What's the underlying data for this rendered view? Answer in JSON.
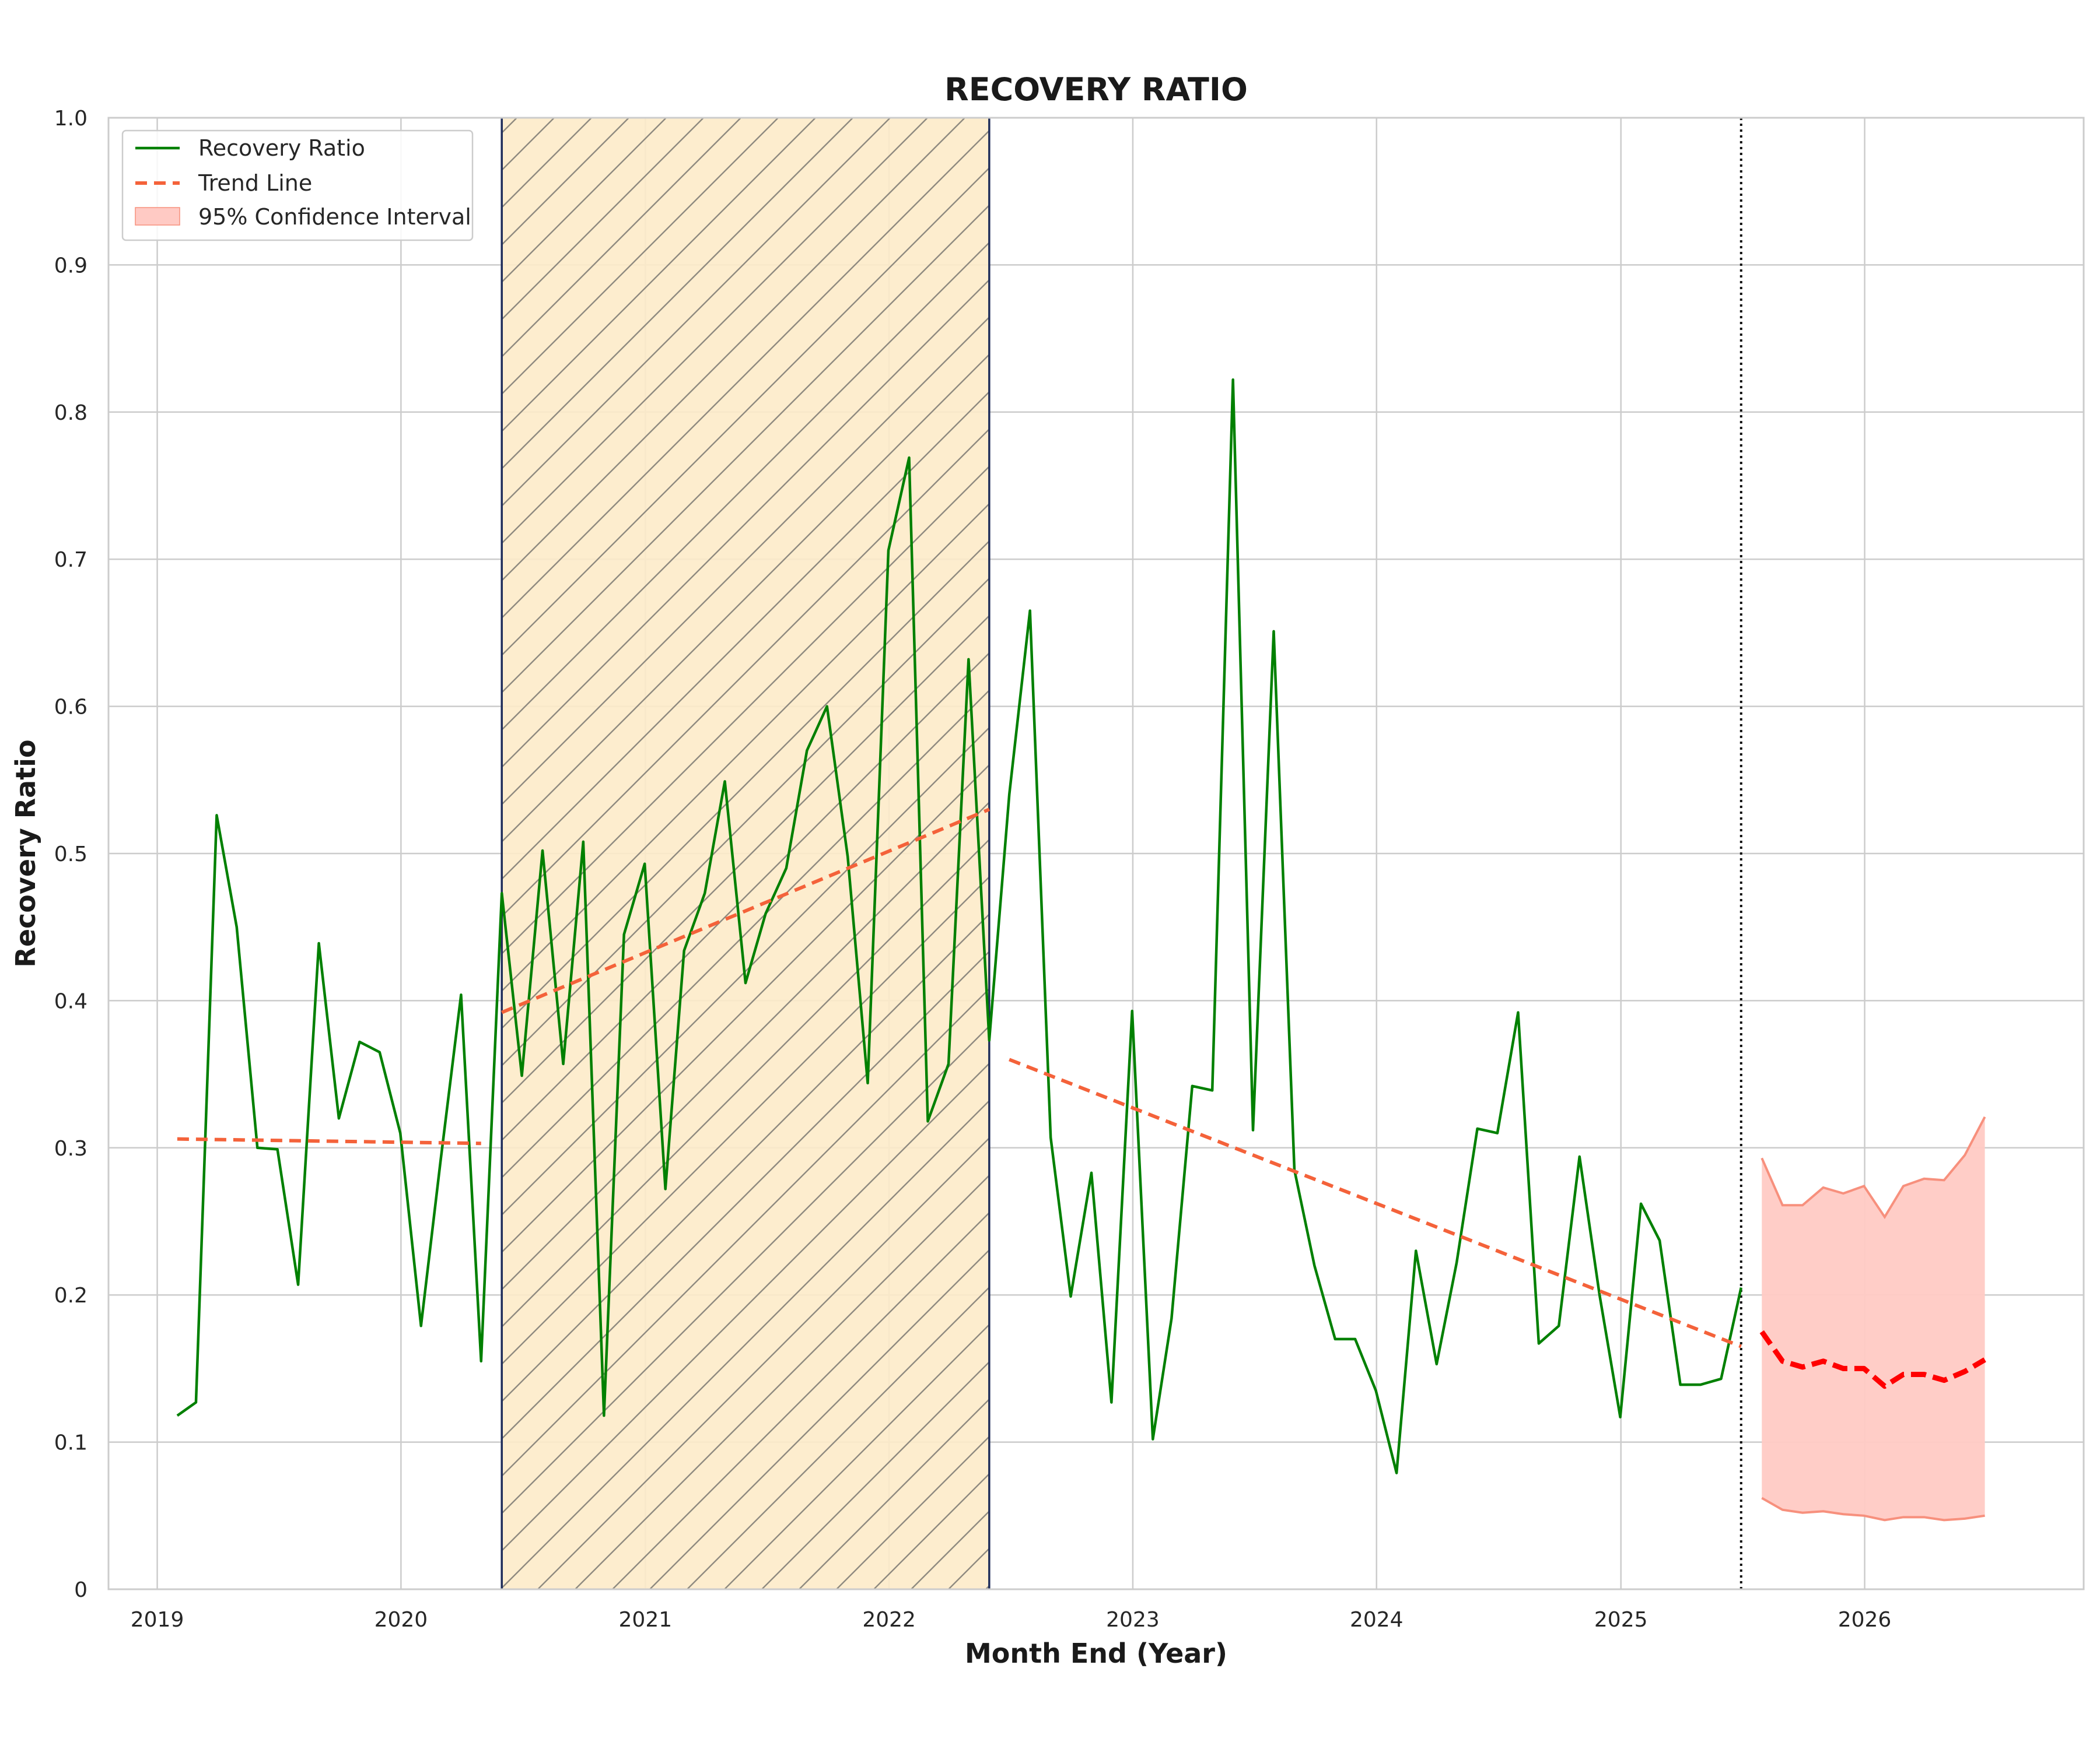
{
  "chart_data": {
    "type": "line",
    "title": "RECOVERY RATIO",
    "xlabel": "Month End (Year)",
    "ylabel": "Recovery Ratio",
    "ylim": [
      0,
      1.0
    ],
    "xlim": [
      "2018-10-20",
      "2026-11-25"
    ],
    "yticks": [
      "0",
      "0.1",
      "0.2",
      "0.3",
      "0.4",
      "0.5",
      "0.6",
      "0.7",
      "0.8",
      "0.9",
      "1.0"
    ],
    "xticks": [
      "2019",
      "2020",
      "2021",
      "2022",
      "2023",
      "2024",
      "2025",
      "2026"
    ],
    "grid": true,
    "legend_position": "top-left",
    "colors": {
      "recovery": "#008000",
      "trend": "#f4623a",
      "forecast": "#ff0000",
      "ci_fill": "#ffcac4",
      "ci_edge": "#f7907d",
      "shade_fill": "#fdebc9",
      "shade_edge": "#1f2d5a"
    },
    "legend": [
      {
        "label": "Recovery Ratio",
        "style": "solid-line",
        "color": "#008000"
      },
      {
        "label": "Trend Line",
        "style": "dashed-line",
        "color": "#f4623a"
      },
      {
        "label": "95% Confidence Interval",
        "style": "patch",
        "color": "#ffcac4"
      }
    ],
    "shaded_period": {
      "start": "2020-05-31",
      "end": "2022-05-31"
    },
    "forecast_start": "2025-06-30",
    "series": [
      {
        "name": "Recovery Ratio",
        "points": [
          [
            "2019-01-31",
            0.118
          ],
          [
            "2019-02-28",
            0.127
          ],
          [
            "2019-03-31",
            0.526
          ],
          [
            "2019-04-30",
            0.45
          ],
          [
            "2019-05-31",
            0.3
          ],
          [
            "2019-06-30",
            0.299
          ],
          [
            "2019-07-31",
            0.207
          ],
          [
            "2019-08-31",
            0.439
          ],
          [
            "2019-09-30",
            0.32
          ],
          [
            "2019-10-31",
            0.372
          ],
          [
            "2019-11-30",
            0.365
          ],
          [
            "2019-12-31",
            0.31
          ],
          [
            "2020-01-31",
            0.179
          ],
          [
            "2020-02-29",
            0.29
          ],
          [
            "2020-03-31",
            0.404
          ],
          [
            "2020-04-30",
            0.155
          ],
          [
            "2020-05-31",
            0.473
          ],
          [
            "2020-06-30",
            0.349
          ],
          [
            "2020-07-31",
            0.502
          ],
          [
            "2020-08-31",
            0.357
          ],
          [
            "2020-09-30",
            0.508
          ],
          [
            "2020-10-31",
            0.118
          ],
          [
            "2020-11-30",
            0.445
          ],
          [
            "2020-12-31",
            0.493
          ],
          [
            "2021-01-31",
            0.272
          ],
          [
            "2021-02-28",
            0.434
          ],
          [
            "2021-03-31",
            0.473
          ],
          [
            "2021-04-30",
            0.549
          ],
          [
            "2021-05-31",
            0.412
          ],
          [
            "2021-06-30",
            0.459
          ],
          [
            "2021-07-31",
            0.49
          ],
          [
            "2021-08-31",
            0.57
          ],
          [
            "2021-09-30",
            0.6
          ],
          [
            "2021-10-31",
            0.498
          ],
          [
            "2021-11-30",
            0.344
          ],
          [
            "2021-12-31",
            0.706
          ],
          [
            "2022-01-31",
            0.769
          ],
          [
            "2022-02-28",
            0.318
          ],
          [
            "2022-03-31",
            0.357
          ],
          [
            "2022-04-30",
            0.632
          ],
          [
            "2022-05-31",
            0.373
          ],
          [
            "2022-06-30",
            0.54
          ],
          [
            "2022-07-31",
            0.665
          ],
          [
            "2022-08-31",
            0.307
          ],
          [
            "2022-09-30",
            0.199
          ],
          [
            "2022-10-31",
            0.283
          ],
          [
            "2022-11-30",
            0.127
          ],
          [
            "2022-12-31",
            0.393
          ],
          [
            "2023-01-31",
            0.102
          ],
          [
            "2023-02-28",
            0.184
          ],
          [
            "2023-03-31",
            0.342
          ],
          [
            "2023-04-30",
            0.339
          ],
          [
            "2023-05-31",
            0.822
          ],
          [
            "2023-06-30",
            0.312
          ],
          [
            "2023-07-31",
            0.651
          ],
          [
            "2023-08-31",
            0.285
          ],
          [
            "2023-09-30",
            0.22
          ],
          [
            "2023-10-31",
            0.17
          ],
          [
            "2023-11-30",
            0.17
          ],
          [
            "2023-12-31",
            0.135
          ],
          [
            "2024-01-31",
            0.079
          ],
          [
            "2024-02-29",
            0.23
          ],
          [
            "2024-03-31",
            0.153
          ],
          [
            "2024-04-30",
            0.222
          ],
          [
            "2024-05-31",
            0.313
          ],
          [
            "2024-06-30",
            0.31
          ],
          [
            "2024-07-31",
            0.392
          ],
          [
            "2024-08-31",
            0.167
          ],
          [
            "2024-09-30",
            0.179
          ],
          [
            "2024-10-31",
            0.294
          ],
          [
            "2024-11-30",
            0.2
          ],
          [
            "2024-12-31",
            0.117
          ],
          [
            "2025-01-31",
            0.262
          ],
          [
            "2025-02-28",
            0.237
          ],
          [
            "2025-03-31",
            0.139
          ],
          [
            "2025-04-30",
            0.139
          ],
          [
            "2025-05-31",
            0.143
          ],
          [
            "2025-06-30",
            0.205
          ]
        ]
      },
      {
        "name": "Trend Line",
        "segments": [
          [
            [
              "2019-01-31",
              0.306
            ],
            [
              "2020-04-30",
              0.303
            ]
          ],
          [
            [
              "2020-05-31",
              0.392
            ],
            [
              "2022-05-31",
              0.53
            ]
          ],
          [
            [
              "2022-06-30",
              0.36
            ],
            [
              "2025-06-30",
              0.165
            ]
          ]
        ]
      },
      {
        "name": "Forecast",
        "points": [
          [
            "2025-07-31",
            0.175
          ],
          [
            "2025-08-31",
            0.155
          ],
          [
            "2025-09-30",
            0.151
          ],
          [
            "2025-10-31",
            0.155
          ],
          [
            "2025-11-30",
            0.15
          ],
          [
            "2025-12-31",
            0.15
          ],
          [
            "2026-01-31",
            0.138
          ],
          [
            "2026-02-28",
            0.146
          ],
          [
            "2026-03-31",
            0.146
          ],
          [
            "2026-04-30",
            0.142
          ],
          [
            "2026-05-31",
            0.148
          ],
          [
            "2026-06-30",
            0.156
          ]
        ],
        "upper": [
          0.293,
          0.261,
          0.261,
          0.273,
          0.269,
          0.274,
          0.253,
          0.274,
          0.279,
          0.278,
          0.295,
          0.321
        ],
        "lower": [
          0.062,
          0.054,
          0.052,
          0.053,
          0.051,
          0.05,
          0.047,
          0.049,
          0.049,
          0.047,
          0.048,
          0.05
        ]
      }
    ]
  }
}
